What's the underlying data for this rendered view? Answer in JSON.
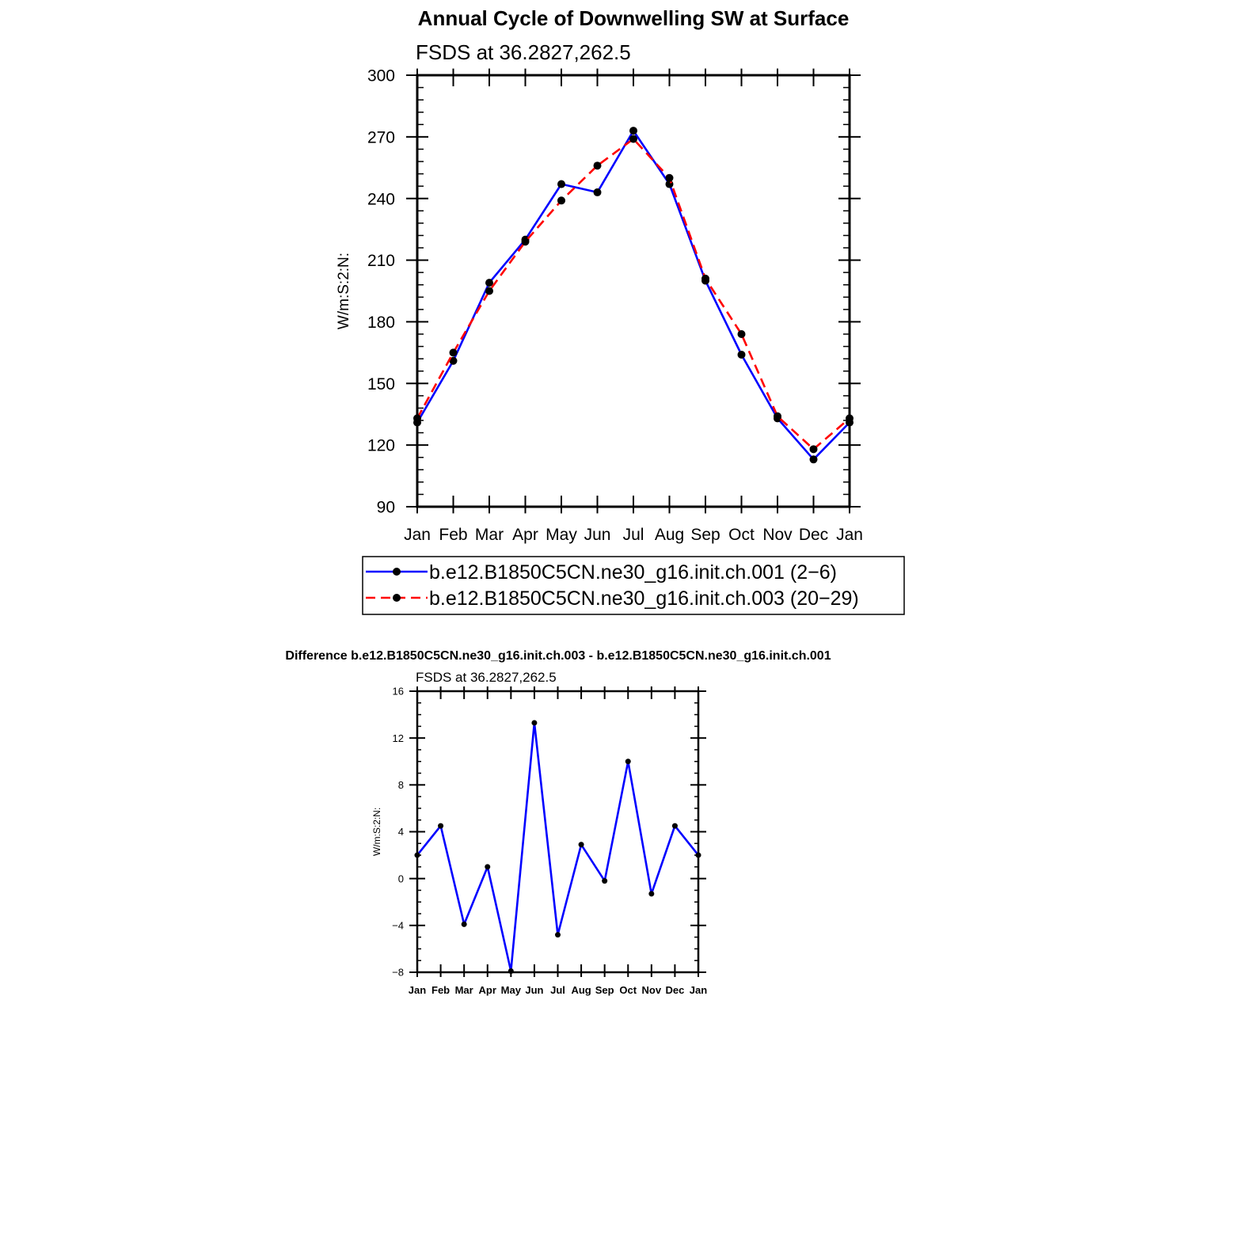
{
  "chart_data": [
    {
      "type": "line",
      "title": "Annual Cycle of Downwelling SW at Surface",
      "subtitle": "FSDS at 36.2827,262.5",
      "xlabel": "",
      "ylabel": "W/m:S:2:N:",
      "categories": [
        "Jan",
        "Feb",
        "Mar",
        "Apr",
        "May",
        "Jun",
        "Jul",
        "Aug",
        "Sep",
        "Oct",
        "Nov",
        "Dec",
        "Jan"
      ],
      "ylim": [
        90,
        300
      ],
      "yticks": [
        90,
        120,
        150,
        180,
        210,
        240,
        270,
        300
      ],
      "legend_position": "bottom",
      "series": [
        {
          "name": "b.e12.B1850C5CN.ne30_g16.init.ch.001 (2−6)",
          "color": "#0000ff",
          "line_style": "solid",
          "values": [
            131,
            161,
            199,
            220,
            247,
            243,
            273,
            247,
            200,
            164,
            133,
            113,
            131
          ]
        },
        {
          "name": "b.e12.B1850C5CN.ne30_g16.init.ch.003 (20−29)",
          "color": "#ff0000",
          "line_style": "dashed",
          "values": [
            133,
            165,
            195,
            219,
            239,
            256,
            269,
            250,
            201,
            174,
            134,
            118,
            133
          ]
        }
      ]
    },
    {
      "type": "line",
      "title": "Difference b.e12.B1850C5CN.ne30_g16.init.ch.003 - b.e12.B1850C5CN.ne30_g16.init.ch.001",
      "subtitle": "FSDS at 36.2827,262.5",
      "xlabel": "",
      "ylabel": "W/m:S:2:N:",
      "categories": [
        "Jan",
        "Feb",
        "Mar",
        "Apr",
        "May",
        "Jun",
        "Jul",
        "Aug",
        "Sep",
        "Oct",
        "Nov",
        "Dec",
        "Jan"
      ],
      "ylim": [
        -8,
        16
      ],
      "yticks": [
        -8,
        -4,
        0,
        4,
        8,
        12,
        16
      ],
      "series": [
        {
          "color": "#0000ff",
          "line_style": "solid",
          "values": [
            2.0,
            4.5,
            -3.9,
            1.0,
            -7.9,
            13.3,
            -4.8,
            2.9,
            -0.2,
            10.0,
            -1.3,
            4.5,
            2.0
          ]
        }
      ]
    }
  ]
}
